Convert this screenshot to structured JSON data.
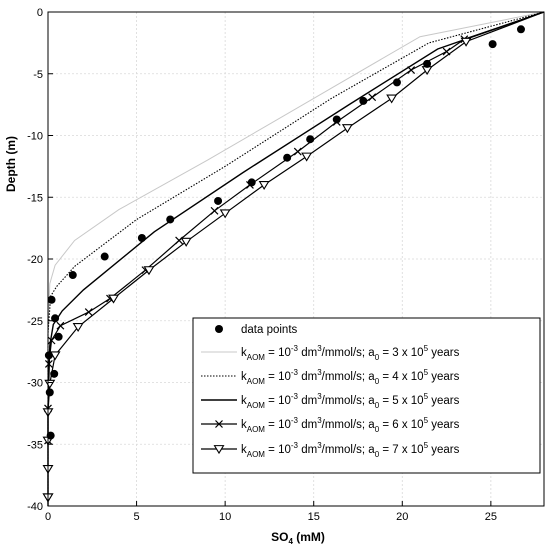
{
  "chart_data": {
    "type": "line",
    "xlabel_main": "SO",
    "xlabel_sub": "4",
    "xlabel_unit": " (mM)",
    "ylabel": "Depth (m)",
    "xlim": [
      0,
      28
    ],
    "ylim": [
      -40,
      0
    ],
    "xticks": [
      "0",
      "5",
      "10",
      "15",
      "20",
      "25"
    ],
    "xtick_values": [
      0,
      5,
      10,
      15,
      20,
      25
    ],
    "yticks": [
      "0",
      "-5",
      "-10",
      "-15",
      "-20",
      "-25",
      "-30",
      "-35",
      "-40"
    ],
    "ytick_values": [
      0,
      -5,
      -10,
      -15,
      -20,
      -25,
      -30,
      -35,
      -40
    ],
    "grid": true,
    "legend_position": "bottom-right",
    "scatter": {
      "name": "data points",
      "x": [
        26.7,
        25.1,
        21.4,
        19.7,
        17.8,
        16.3,
        14.8,
        13.5,
        11.5,
        9.6,
        6.9,
        5.3,
        3.2,
        1.4,
        0.2,
        0.4,
        0.6,
        0.35,
        0.05,
        0.1,
        0.15
      ],
      "y": [
        -1.4,
        -2.6,
        -4.2,
        -5.7,
        -7.2,
        -8.7,
        -10.3,
        -11.8,
        -13.8,
        -15.3,
        -16.8,
        -18.3,
        -19.8,
        -21.3,
        -23.3,
        -24.8,
        -26.3,
        -29.3,
        -27.8,
        -30.8,
        -34.3
      ]
    },
    "series": [
      {
        "name": "k_AOM = 10^-3 dm^3/mmol/s; a_0 = 3 x 10^5 years",
        "style": "gray",
        "x": [
          28,
          21,
          15,
          9,
          4,
          1.5,
          0.4,
          0.1,
          0,
          0,
          0
        ],
        "y": [
          0,
          -2,
          -7,
          -12,
          -16,
          -18.5,
          -20.5,
          -22,
          -26,
          -32,
          -40
        ]
      },
      {
        "name": "k_AOM = 10^-3 dm^3/mmol/s; a_0 = 4 x 10^5 years",
        "style": "dotted",
        "x": [
          28,
          21.5,
          16,
          10,
          5,
          1.5,
          0.5,
          0.15,
          0,
          0,
          0
        ],
        "y": [
          0,
          -2.5,
          -7,
          -12.5,
          -16.8,
          -20.6,
          -22.2,
          -23,
          -26,
          -32,
          -40
        ]
      },
      {
        "name": "k_AOM = 10^-3 dm^3/mmol/s; a_0 = 5 x 10^5 years",
        "style": "solid",
        "x": [
          28,
          22,
          17,
          11,
          6,
          2,
          0.8,
          0.3,
          0.1,
          0,
          0
        ],
        "y": [
          0,
          -3,
          -7.5,
          -13,
          -17.8,
          -22.5,
          -24.2,
          -25.3,
          -27,
          -32,
          -40
        ]
      },
      {
        "name": "k_AOM = 10^-3 dm^3/mmol/s; a_0 = 6 x 10^5 years",
        "style": "x-marker",
        "x": [
          28,
          23.5,
          22.5,
          20.5,
          18.3,
          16.3,
          14.1,
          11.4,
          9.4,
          7.4,
          5.5,
          3.5,
          2.3,
          0.7,
          0.2,
          0.05,
          0,
          0
        ],
        "y": [
          0,
          -2.2,
          -3.2,
          -4.7,
          -6.9,
          -8.9,
          -11.3,
          -14.0,
          -16.1,
          -18.5,
          -20.9,
          -23.2,
          -24.3,
          -25.4,
          -26.6,
          -28.5,
          -32.1,
          -34.7
        ]
      },
      {
        "name": "k_AOM = 10^-3 dm^3/mmol/s; a_0 = 7 x 10^5 years",
        "style": "triangle-marker",
        "x": [
          28,
          23.6,
          21.4,
          19.4,
          16.9,
          14.6,
          12.2,
          10.0,
          7.8,
          5.7,
          3.7,
          1.7,
          0.4,
          0.1,
          0,
          0,
          0,
          0,
          0
        ],
        "y": [
          0,
          -2.4,
          -4.7,
          -7.0,
          -9.4,
          -11.7,
          -14.0,
          -16.3,
          -18.6,
          -20.9,
          -23.2,
          -25.5,
          -27.8,
          -30.1,
          -32.4,
          -34.7,
          -37,
          -39.3,
          -39.3
        ]
      }
    ],
    "legend": {
      "entries": [
        {
          "kind": "marker",
          "text": "data points"
        },
        {
          "kind": "k",
          "k_prefix": "k",
          "k_sub": "AOM",
          "mid1": " = 10",
          "exp1": "-3",
          "mid2": " dm",
          "exp2": "3",
          "mid3": "/mmol/s; a",
          "a_sub": "0",
          "mid4": " = 3 x 10",
          "exp3": "5",
          "tail": " years"
        },
        {
          "kind": "k",
          "k_prefix": "k",
          "k_sub": "AOM",
          "mid1": " = 10",
          "exp1": "-3",
          "mid2": " dm",
          "exp2": "3",
          "mid3": "/mmol/s; a",
          "a_sub": "0",
          "mid4": " = 4 x 10",
          "exp3": "5",
          "tail": " years"
        },
        {
          "kind": "k",
          "k_prefix": "k",
          "k_sub": "AOM",
          "mid1": " = 10",
          "exp1": "-3",
          "mid2": " dm",
          "exp2": "3",
          "mid3": "/mmol/s; a",
          "a_sub": "0",
          "mid4": " = 5 x 10",
          "exp3": "5",
          "tail": " years"
        },
        {
          "kind": "k",
          "k_prefix": "k",
          "k_sub": "AOM",
          "mid1": " = 10",
          "exp1": "-3",
          "mid2": " dm",
          "exp2": "3",
          "mid3": "/mmol/s; a",
          "a_sub": "0",
          "mid4": " = 6 x 10",
          "exp3": "5",
          "tail": " years"
        },
        {
          "kind": "k",
          "k_prefix": "k",
          "k_sub": "AOM",
          "mid1": " = 10",
          "exp1": "-3",
          "mid2": " dm",
          "exp2": "3",
          "mid3": "/mmol/s; a",
          "a_sub": "0",
          "mid4": " = 7 x 10",
          "exp3": "5",
          "tail": " years"
        }
      ]
    }
  }
}
